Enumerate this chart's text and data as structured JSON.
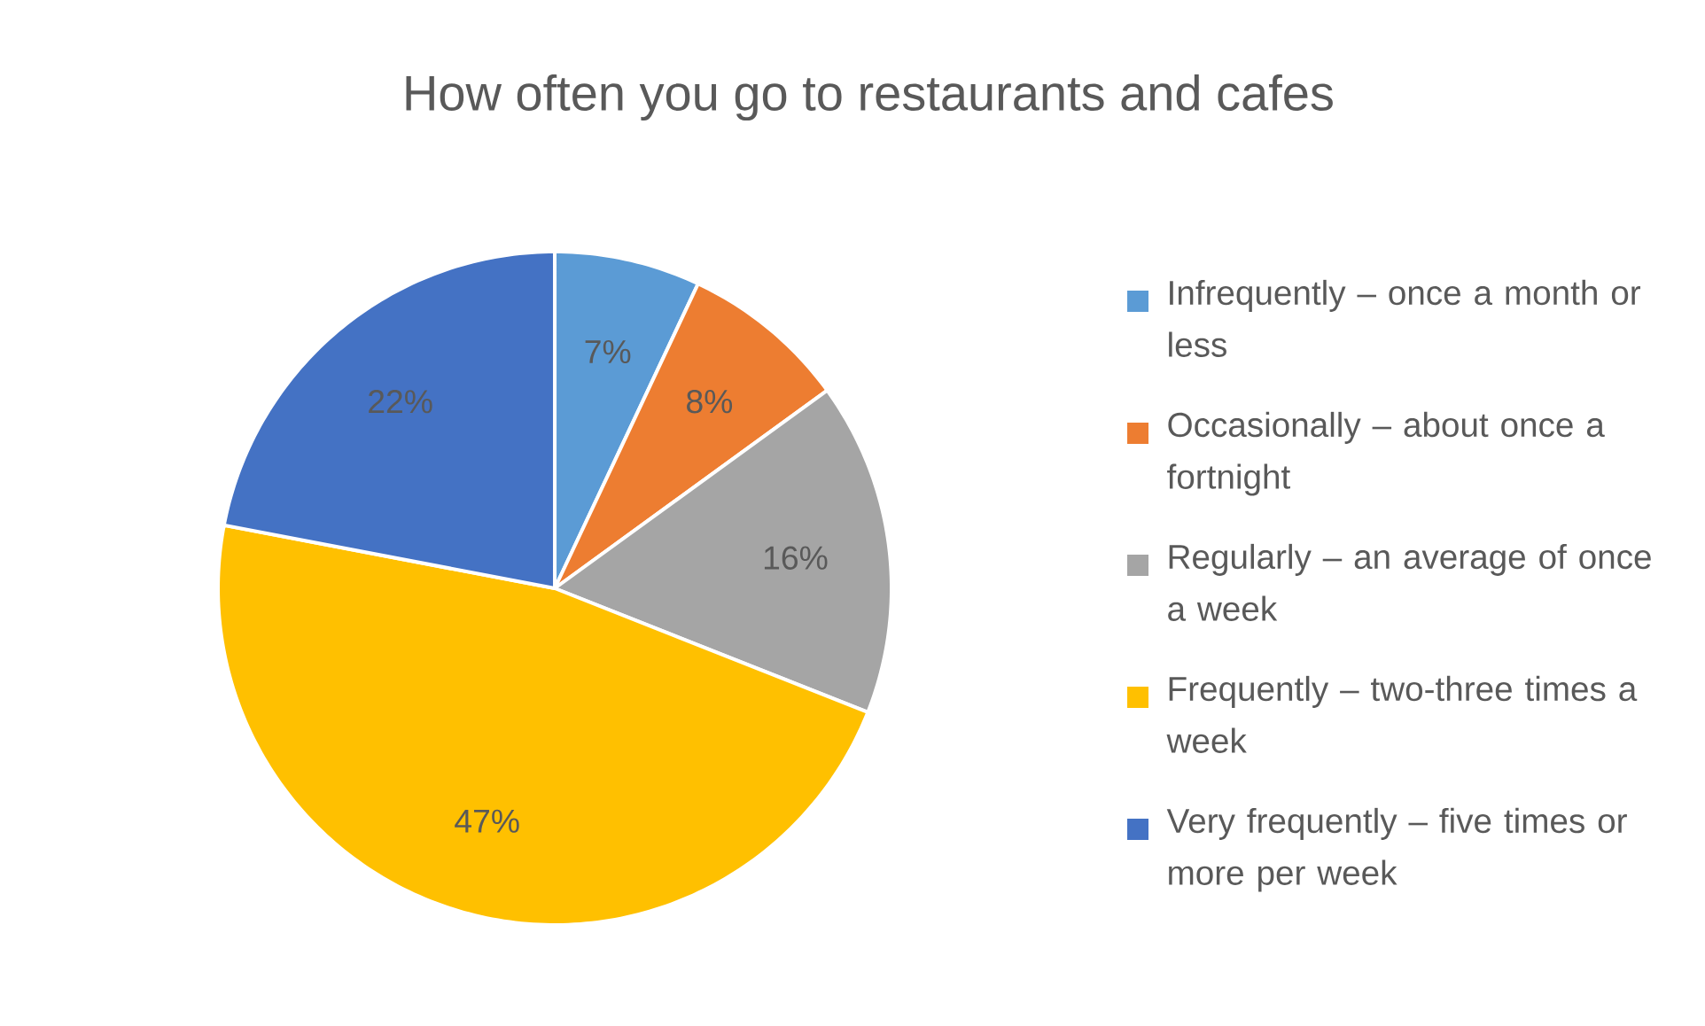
{
  "chart_data": {
    "type": "pie",
    "title": "How often you go to restaurants and cafes",
    "categories": [
      "Infrequently – once a month or less",
      "Occasionally – about once a fortnight",
      "Regularly – an average of once a week",
      "Frequently – two-three times a week",
      "Very frequently – five times or more per week"
    ],
    "values": [
      7,
      8,
      16,
      47,
      22
    ],
    "colors": [
      "#5b9bd5",
      "#ed7d31",
      "#a5a5a5",
      "#ffc000",
      "#4472c4"
    ],
    "value_labels": [
      "7%",
      "8%",
      "16%",
      "47%",
      "22%"
    ],
    "legend": "right"
  }
}
